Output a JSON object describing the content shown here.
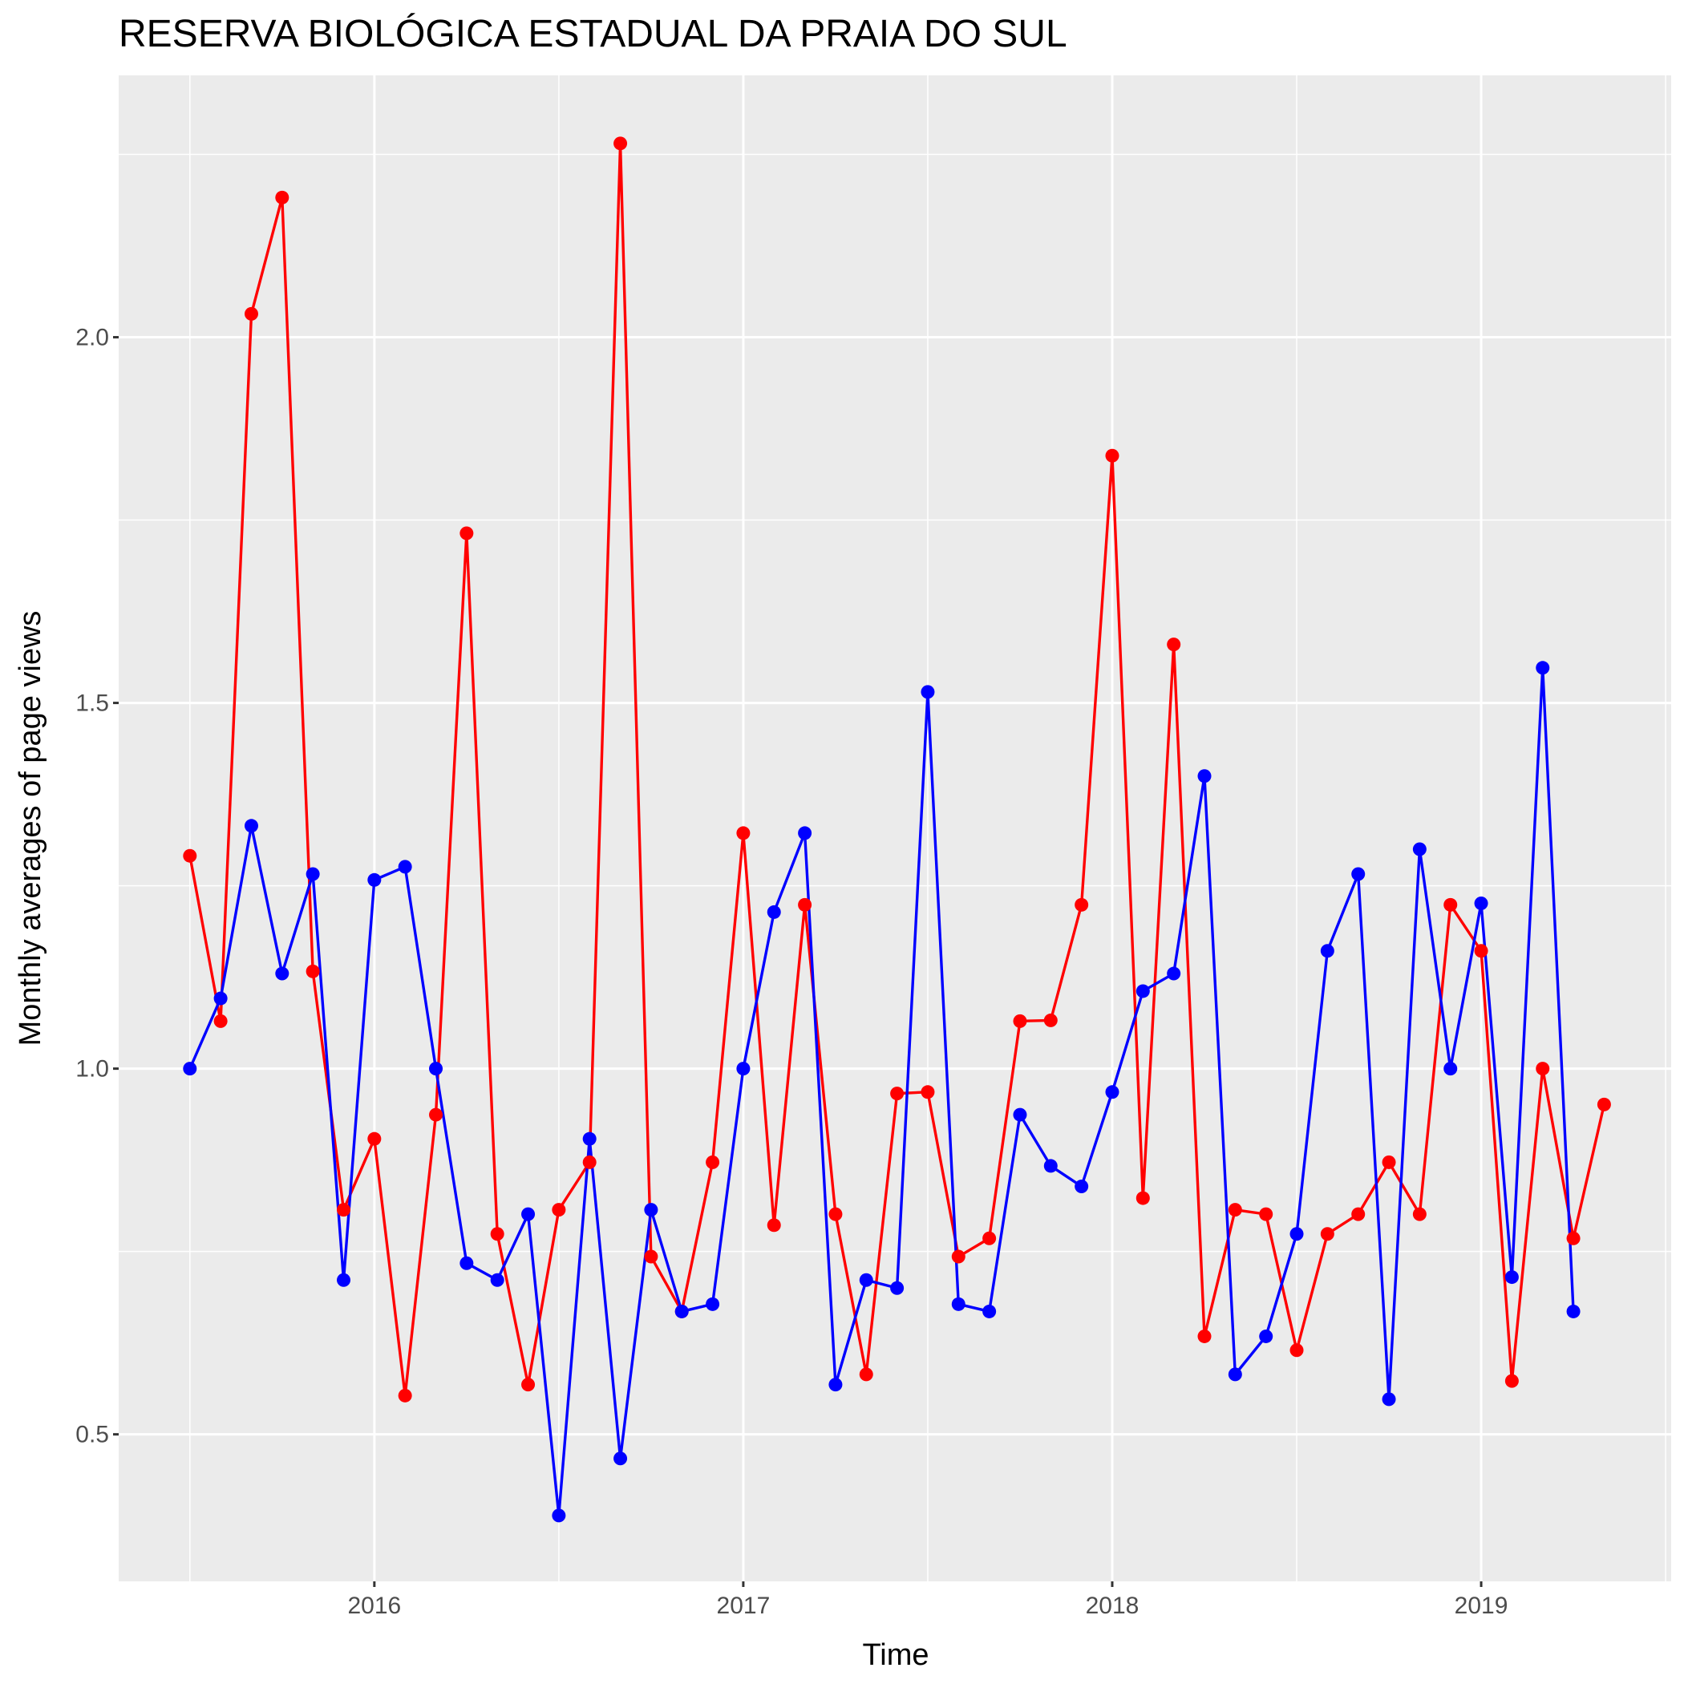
{
  "chart_data": {
    "type": "line",
    "title": "RESERVA BIOLÓGICA ESTADUAL DA PRAIA DO SUL",
    "x_label": "Time",
    "y_label": "Monthly averages of page views",
    "xlim": [
      2015.307,
      2019.515
    ],
    "ylim": [
      0.299,
      2.358
    ],
    "xticks": [
      2016,
      2017,
      2018,
      2019
    ],
    "yticks": [
      0.5,
      {
        "value": 1,
        "label": "1.0"
      },
      1.5,
      {
        "value": 2,
        "label": "2.0"
      }
    ],
    "x_minor_grid": [
      2015.5,
      2016.5,
      2017.5,
      2018.5,
      2019.5
    ],
    "y_minor_grid": [
      0.75,
      1.25,
      1.75,
      2.25
    ],
    "grid": true,
    "series": [
      {
        "color": "#ff0000",
        "x": [
          2015.5,
          2015.5833,
          2015.6667,
          2015.75,
          2015.8333,
          2015.9167,
          2016,
          2016.0833,
          2016.1667,
          2016.25,
          2016.3333,
          2016.4167,
          2016.5,
          2016.5833,
          2016.6667,
          2016.75,
          2016.8333,
          2016.9167,
          2017,
          2017.0833,
          2017.1667,
          2017.25,
          2017.3333,
          2017.4167,
          2017.5,
          2017.5833,
          2017.6667,
          2017.75,
          2017.8333,
          2017.9167,
          2018,
          2018.0833,
          2018.1667,
          2018.25,
          2018.3333,
          2018.4167,
          2018.5,
          2018.5833,
          2018.6667,
          2018.75,
          2018.8333,
          2018.9167,
          2019,
          2019.0833,
          2019.1667,
          2019.25,
          2019.3333
        ],
        "values": [
          1.291,
          1.065,
          2.032,
          2.191,
          1.133,
          0.807,
          0.904,
          0.553,
          0.937,
          1.732,
          0.774,
          0.568,
          0.807,
          0.872,
          2.265,
          0.743,
          0.668,
          0.872,
          1.322,
          0.786,
          1.224,
          0.801,
          0.582,
          0.966,
          0.968,
          0.743,
          0.768,
          1.065,
          1.066,
          1.224,
          1.838,
          0.823,
          1.58,
          0.634,
          0.807,
          0.801,
          0.615,
          0.774,
          0.801,
          0.872,
          0.801,
          1.224,
          1.161,
          0.573,
          1.0,
          0.768,
          0.951
        ]
      },
      {
        "color": "#0000ff",
        "x": [
          2015.5,
          2015.5833,
          2015.6667,
          2015.75,
          2015.8333,
          2015.9167,
          2016,
          2016.0833,
          2016.1667,
          2016.25,
          2016.3333,
          2016.4167,
          2016.5,
          2016.5833,
          2016.6667,
          2016.75,
          2016.8333,
          2016.9167,
          2017,
          2017.0833,
          2017.1667,
          2017.25,
          2017.3333,
          2017.4167,
          2017.5,
          2017.5833,
          2017.6667,
          2017.75,
          2017.8333,
          2017.9167,
          2018,
          2018.0833,
          2018.1667,
          2018.25,
          2018.3333,
          2018.4167,
          2018.5,
          2018.5833,
          2018.6667,
          2018.75,
          2018.8333,
          2018.9167,
          2019,
          2019.0833,
          2019.1667,
          2019.25
        ],
        "values": [
          1.0,
          1.096,
          1.332,
          1.13,
          1.266,
          0.711,
          1.258,
          1.276,
          1.0,
          0.734,
          0.711,
          0.801,
          0.389,
          0.904,
          0.467,
          0.807,
          0.668,
          0.678,
          1.0,
          1.214,
          1.322,
          0.568,
          0.711,
          0.7,
          1.515,
          0.678,
          0.668,
          0.937,
          0.867,
          0.839,
          0.968,
          1.106,
          1.13,
          1.4,
          0.582,
          0.634,
          0.774,
          1.161,
          1.266,
          0.548,
          1.3,
          1.0,
          1.226,
          0.715,
          1.548,
          0.668
        ]
      }
    ]
  }
}
